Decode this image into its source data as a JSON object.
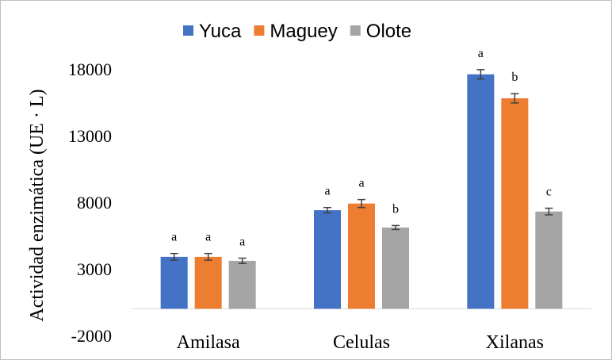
{
  "chart_data": {
    "type": "bar",
    "title": "",
    "xlabel": "",
    "ylabel": "Actividad enzimática (UE · L)",
    "ylim": [
      -2000,
      18000
    ],
    "yticks": [
      -2000,
      3000,
      8000,
      13000,
      18000
    ],
    "y_tick_labels": [
      "-2000",
      "3000",
      "8000",
      "13000",
      "18000"
    ],
    "grid": false,
    "legend_position": "top",
    "categories": [
      "Amilasa",
      "Celulas",
      "Xilanas"
    ],
    "series": [
      {
        "name": "Yuca",
        "color": "#4472C4",
        "values": [
          3900,
          7400,
          17600
        ],
        "errors": [
          250,
          200,
          350
        ],
        "labels": [
          "a",
          "a",
          "a"
        ]
      },
      {
        "name": "Maguey",
        "color": "#ED7D31",
        "values": [
          3900,
          7900,
          15800
        ],
        "errors": [
          250,
          300,
          350
        ],
        "labels": [
          "a",
          "a",
          "b"
        ]
      },
      {
        "name": "Olote",
        "color": "#A5A5A5",
        "values": [
          3600,
          6100,
          7300
        ],
        "errors": [
          200,
          150,
          250
        ],
        "labels": [
          "a",
          "b",
          "c"
        ]
      }
    ]
  }
}
